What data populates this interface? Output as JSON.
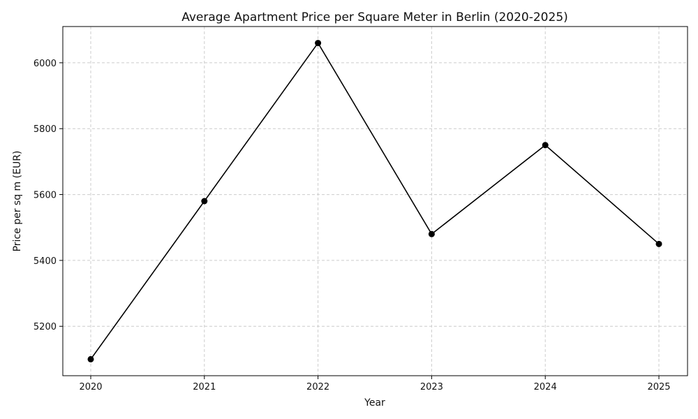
{
  "chart_data": {
    "type": "line",
    "title": "Average Apartment Price per Square Meter in Berlin (2020-2025)",
    "xlabel": "Year",
    "ylabel": "Price per sq m (EUR)",
    "categories": [
      "2020",
      "2021",
      "2022",
      "2023",
      "2024",
      "2025"
    ],
    "series": [
      {
        "values": [
          5100,
          5580,
          6060,
          5480,
          5750,
          5450
        ]
      }
    ],
    "ylim": [
      5050,
      6110
    ],
    "yticks": [
      5200,
      5400,
      5600,
      5800,
      6000
    ],
    "grid": true,
    "grid_style": "dashed",
    "line_color": "#000000",
    "marker": "circle",
    "legend": false
  }
}
